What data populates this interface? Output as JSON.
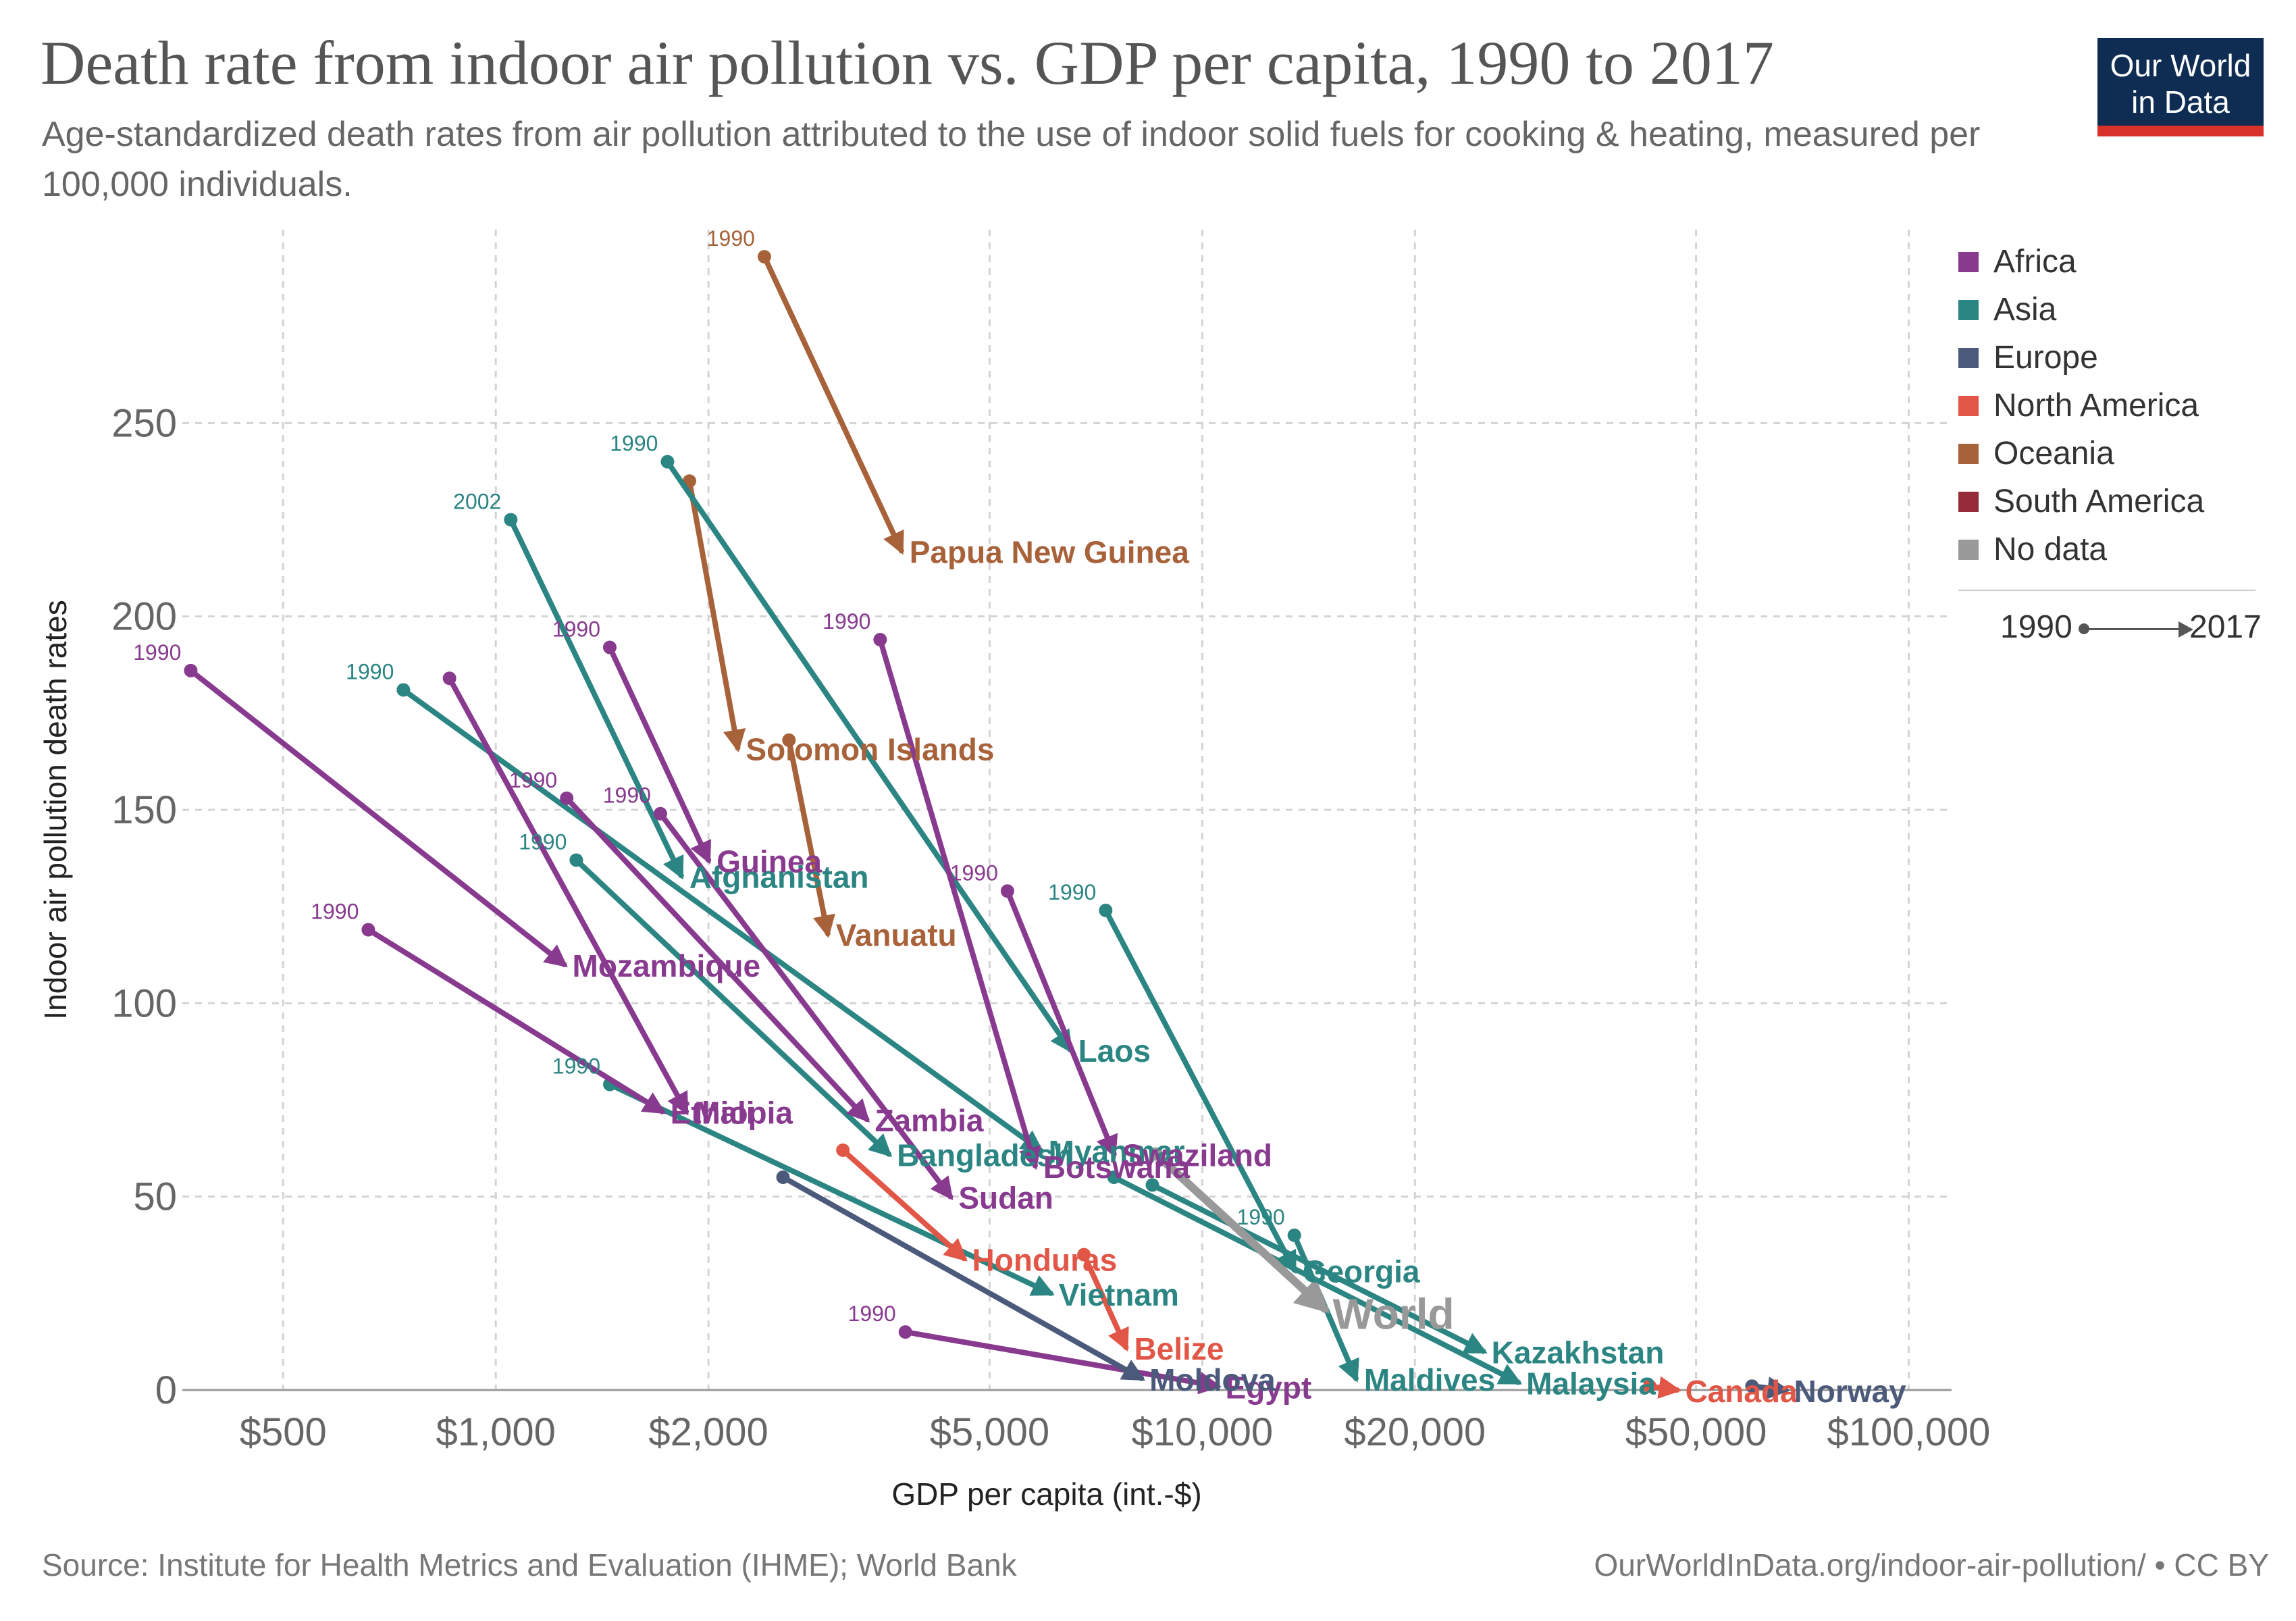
{
  "header": {
    "title": "Death rate from indoor air pollution vs. GDP per capita, 1990 to 2017",
    "subtitle": "Age-standardized death rates from air pollution attributed to the use of indoor solid fuels for cooking & heating, measured per 100,000 individuals.",
    "logo_line1": "Our World",
    "logo_line2": "in Data"
  },
  "footer": {
    "source": "Source: Institute for Health Metrics and Evaluation (IHME); World Bank",
    "url": "OurWorldInData.org/indoor-air-pollution/ • CC BY"
  },
  "legend": {
    "items": [
      {
        "label": "Africa",
        "color": "#883a8f"
      },
      {
        "label": "Asia",
        "color": "#2b8583"
      },
      {
        "label": "Europe",
        "color": "#4b5a7b"
      },
      {
        "label": "North America",
        "color": "#e15646"
      },
      {
        "label": "Oceania",
        "color": "#a8623a"
      },
      {
        "label": "South America",
        "color": "#962c3a"
      },
      {
        "label": "No data",
        "color": "#999999"
      }
    ],
    "time_start": "1990",
    "time_end": "2017"
  },
  "chart_data": {
    "type": "scatter",
    "xlabel": "GDP per capita (int.-$)",
    "ylabel": "Indoor air pollution death rates",
    "x_scale": "log",
    "xlim": [
      360,
      115000
    ],
    "ylim": [
      0,
      300
    ],
    "x_ticks": [
      {
        "value": 500,
        "label": "$500"
      },
      {
        "value": 1000,
        "label": "$1,000"
      },
      {
        "value": 2000,
        "label": "$2,000"
      },
      {
        "value": 5000,
        "label": "$5,000"
      },
      {
        "value": 10000,
        "label": "$10,000"
      },
      {
        "value": 20000,
        "label": "$20,000"
      },
      {
        "value": 50000,
        "label": "$50,000"
      },
      {
        "value": 100000,
        "label": "$100,000"
      }
    ],
    "y_ticks": [
      {
        "value": 0,
        "label": "0"
      },
      {
        "value": 50,
        "label": "50"
      },
      {
        "value": 100,
        "label": "100"
      },
      {
        "value": 150,
        "label": "150"
      },
      {
        "value": 200,
        "label": "200"
      },
      {
        "value": 250,
        "label": "250"
      }
    ],
    "grid": true,
    "legend_position": "right",
    "series": [
      {
        "name": "Papua New Guinea",
        "region": "Oceania",
        "x0": 2400,
        "y0": 293,
        "x1": 3750,
        "y1": 217,
        "start_label": "1990"
      },
      {
        "name": "Solomon Islands",
        "region": "Oceania",
        "x0": 1880,
        "y0": 235,
        "x1": 2200,
        "y1": 166
      },
      {
        "name": "Vanuatu",
        "region": "Oceania",
        "x0": 2600,
        "y0": 168,
        "x1": 2950,
        "y1": 118
      },
      {
        "name": "Afghanistan",
        "region": "Asia",
        "x0": 1050,
        "y0": 225,
        "x1": 1830,
        "y1": 133,
        "start_label": "2002"
      },
      {
        "name": "Laos",
        "region": "Asia",
        "x0": 1750,
        "y0": 240,
        "x1": 6500,
        "y1": 88,
        "start_label": "1990"
      },
      {
        "name": "Myanmar",
        "region": "Asia",
        "x0": 740,
        "y0": 181,
        "x1": 5900,
        "y1": 62,
        "start_label": "1990"
      },
      {
        "name": "Bangladesh",
        "region": "Asia",
        "x0": 1300,
        "y0": 137,
        "x1": 3600,
        "y1": 61,
        "start_label": "1990"
      },
      {
        "name": "Vietnam",
        "region": "Asia",
        "x0": 1450,
        "y0": 79,
        "x1": 6100,
        "y1": 25,
        "start_label": "1990"
      },
      {
        "name": "Georgia",
        "region": "Asia",
        "x0": 7300,
        "y0": 124,
        "x1": 13500,
        "y1": 31,
        "start_label": "1990"
      },
      {
        "name": "Kazakhstan",
        "region": "Asia",
        "x0": 8500,
        "y0": 53,
        "x1": 25000,
        "y1": 10
      },
      {
        "name": "Maldives",
        "region": "Asia",
        "x0": 13500,
        "y0": 40,
        "x1": 16500,
        "y1": 3,
        "start_label": "1990"
      },
      {
        "name": "Malaysia",
        "region": "Asia",
        "x0": 7500,
        "y0": 55,
        "x1": 28000,
        "y1": 2
      },
      {
        "name": "Mozambique",
        "region": "Africa",
        "x0": 370,
        "y0": 186,
        "x1": 1250,
        "y1": 110,
        "start_label": "1990"
      },
      {
        "name": "Ethiopia",
        "region": "Africa",
        "x0": 660,
        "y0": 119,
        "x1": 1720,
        "y1": 72,
        "start_label": "1990"
      },
      {
        "name": "Mali",
        "region": "Africa",
        "x0": 860,
        "y0": 184,
        "x1": 1860,
        "y1": 72
      },
      {
        "name": "Guinea",
        "region": "Africa",
        "x0": 1450,
        "y0": 192,
        "x1": 2000,
        "y1": 137,
        "start_label": "1990"
      },
      {
        "name": "Zambia",
        "region": "Africa",
        "x0": 1260,
        "y0": 153,
        "x1": 3350,
        "y1": 70,
        "start_label": "1990"
      },
      {
        "name": "Sudan",
        "region": "Africa",
        "x0": 1710,
        "y0": 149,
        "x1": 4400,
        "y1": 50,
        "start_label": "1990"
      },
      {
        "name": "Swaziland",
        "region": "Africa",
        "x0": 5300,
        "y0": 129,
        "x1": 7500,
        "y1": 61,
        "start_label": "1990"
      },
      {
        "name": "Botswana",
        "region": "Africa",
        "x0": 3500,
        "y0": 194,
        "x1": 5800,
        "y1": 58,
        "start_label": "1990"
      },
      {
        "name": "Egypt",
        "region": "Africa",
        "x0": 3800,
        "y0": 15,
        "x1": 10500,
        "y1": 1,
        "start_label": "1990"
      },
      {
        "name": "Honduras",
        "region": "North America",
        "x0": 3100,
        "y0": 62,
        "x1": 4600,
        "y1": 34
      },
      {
        "name": "Belize",
        "region": "North America",
        "x0": 6800,
        "y0": 35,
        "x1": 7800,
        "y1": 11
      },
      {
        "name": "Canada",
        "region": "North America",
        "x0": 43000,
        "y0": 1,
        "x1": 47000,
        "y1": 0
      },
      {
        "name": "Moldova",
        "region": "Europe",
        "x0": 2550,
        "y0": 55,
        "x1": 8200,
        "y1": 3
      },
      {
        "name": "Norway",
        "region": "Europe",
        "x0": 60000,
        "y0": 1,
        "x1": 67000,
        "y1": 0
      },
      {
        "name": "World",
        "region": "No data",
        "x0": 8600,
        "y0": 61,
        "x1": 14900,
        "y1": 21
      }
    ]
  }
}
